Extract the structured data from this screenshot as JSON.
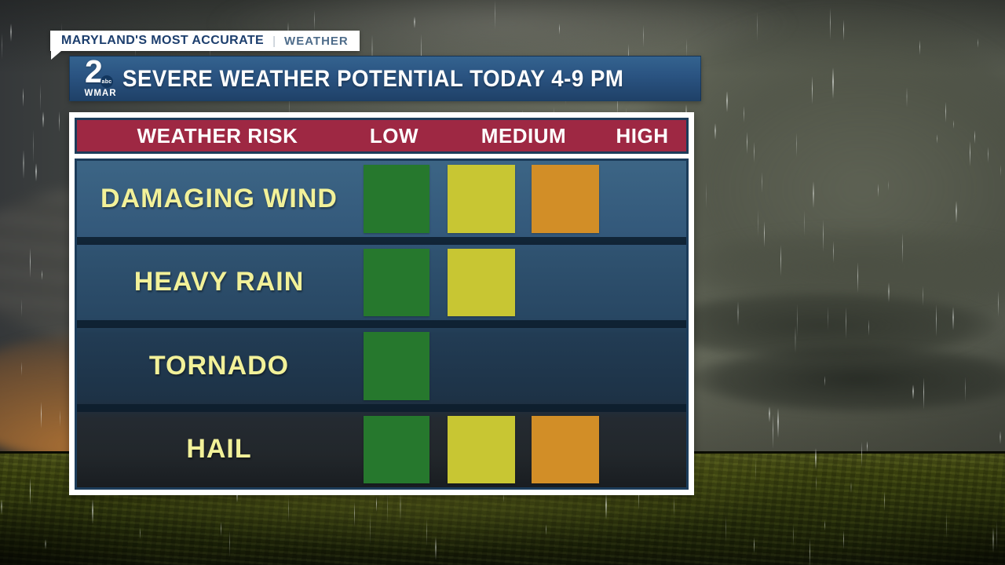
{
  "station_badge": {
    "primary": "MARYLAND'S MOST ACCURATE",
    "divider": "|",
    "secondary": "WEATHER"
  },
  "banner": {
    "title": "SEVERE WEATHER POTENTIAL TODAY 4-9 PM",
    "logo": {
      "number": "2",
      "network": "abc",
      "callsign": "WMAR"
    }
  },
  "table": {
    "headers": [
      "WEATHER RISK",
      "LOW",
      "MEDIUM",
      "HIGH"
    ],
    "rows": [
      {
        "label": "DAMAGING WIND",
        "levels": [
          "low",
          "medium",
          "high"
        ]
      },
      {
        "label": "HEAVY RAIN",
        "levels": [
          "low",
          "medium"
        ]
      },
      {
        "label": "TORNADO",
        "levels": [
          "low"
        ]
      },
      {
        "label": "HAIL",
        "levels": [
          "low",
          "medium",
          "high"
        ]
      }
    ]
  },
  "colors": {
    "low": "#26782d",
    "medium": "#c8c633",
    "high": "#d28e27",
    "header_bg": "#9e2843",
    "accent_navy": "#1c3c5a",
    "banner_blue": "#2a5381",
    "label_yellow": "#f2f199"
  },
  "chart_data": {
    "type": "table",
    "title": "SEVERE WEATHER POTENTIAL TODAY 4-9 PM",
    "columns": [
      "WEATHER RISK",
      "LOW",
      "MEDIUM",
      "HIGH"
    ],
    "rows": [
      {
        "risk": "DAMAGING WIND",
        "max_level": "HIGH",
        "cells": {
          "LOW": true,
          "MEDIUM": true,
          "HIGH": true
        }
      },
      {
        "risk": "HEAVY RAIN",
        "max_level": "MEDIUM",
        "cells": {
          "LOW": true,
          "MEDIUM": true,
          "HIGH": false
        }
      },
      {
        "risk": "TORNADO",
        "max_level": "LOW",
        "cells": {
          "LOW": true,
          "MEDIUM": false,
          "HIGH": false
        }
      },
      {
        "risk": "HAIL",
        "max_level": "HIGH",
        "cells": {
          "LOW": true,
          "MEDIUM": true,
          "HIGH": true
        }
      }
    ],
    "legend_position": "header-row",
    "grid": false
  }
}
